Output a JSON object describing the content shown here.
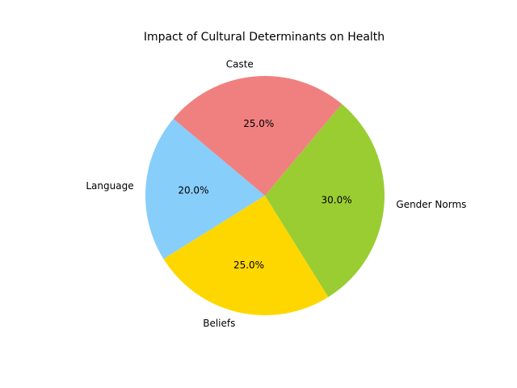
{
  "chart_data": {
    "type": "pie",
    "title": "Impact of Cultural Determinants on Health",
    "start_angle_deg": 140,
    "direction": "counterclockwise",
    "slices": [
      {
        "label": "Language",
        "value": 20,
        "pct_label": "20.0%",
        "color": "#87CEFA"
      },
      {
        "label": "Beliefs",
        "value": 25,
        "pct_label": "25.0%",
        "color": "#FFD700"
      },
      {
        "label": "Gender Norms",
        "value": 30,
        "pct_label": "30.0%",
        "color": "#9ACD32"
      },
      {
        "label": "Caste",
        "value": 25,
        "pct_label": "25.0%",
        "color": "#F08080"
      }
    ]
  }
}
